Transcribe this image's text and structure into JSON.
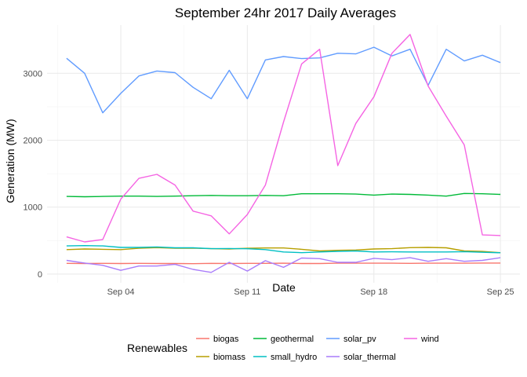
{
  "chart_data": {
    "type": "line",
    "title": "September 24hr 2017 Daily Averages",
    "xlabel": "Date",
    "ylabel": "Generation (MW)",
    "x": [
      "2017-09-01",
      "2017-09-02",
      "2017-09-03",
      "2017-09-04",
      "2017-09-05",
      "2017-09-06",
      "2017-09-07",
      "2017-09-08",
      "2017-09-09",
      "2017-09-10",
      "2017-09-11",
      "2017-09-12",
      "2017-09-13",
      "2017-09-14",
      "2017-09-15",
      "2017-09-16",
      "2017-09-17",
      "2017-09-18",
      "2017-09-19",
      "2017-09-20",
      "2017-09-21",
      "2017-09-22",
      "2017-09-23",
      "2017-09-24",
      "2017-09-25"
    ],
    "x_ticks": [
      {
        "date": "2017-09-04",
        "label": "Sep 04"
      },
      {
        "date": "2017-09-11",
        "label": "Sep 11"
      },
      {
        "date": "2017-09-18",
        "label": "Sep 18"
      },
      {
        "date": "2017-09-25",
        "label": "Sep 25"
      }
    ],
    "y_ticks": [
      0,
      1000,
      2000,
      3000
    ],
    "ylim": [
      -130,
      3720
    ],
    "grid": true,
    "legend": {
      "title": "Renewables",
      "position": "bottom"
    },
    "series": [
      {
        "name": "biogas",
        "color": "#F8766D",
        "values": [
          160,
          158,
          160,
          158,
          160,
          158,
          158,
          155,
          160,
          158,
          160,
          160,
          162,
          158,
          158,
          162,
          162,
          162,
          162,
          160,
          162,
          162,
          162,
          165,
          165
        ]
      },
      {
        "name": "biomass",
        "color": "#B79F00",
        "values": [
          365,
          375,
          370,
          365,
          385,
          395,
          385,
          388,
          380,
          375,
          385,
          390,
          390,
          370,
          345,
          355,
          360,
          375,
          380,
          395,
          398,
          392,
          345,
          338,
          320
        ]
      },
      {
        "name": "geothermal",
        "color": "#00BA38",
        "values": [
          1160,
          1155,
          1160,
          1165,
          1165,
          1160,
          1165,
          1170,
          1175,
          1170,
          1170,
          1175,
          1170,
          1200,
          1200,
          1200,
          1195,
          1180,
          1195,
          1190,
          1180,
          1165,
          1205,
          1200,
          1190
        ]
      },
      {
        "name": "small_hydro",
        "color": "#00BFC4",
        "values": [
          420,
          425,
          420,
          398,
          398,
          405,
          392,
          392,
          380,
          382,
          378,
          365,
          330,
          320,
          330,
          340,
          345,
          330,
          332,
          330,
          330,
          330,
          335,
          325,
          318
        ]
      },
      {
        "name": "solar_pv",
        "color": "#619CFF",
        "values": [
          3225,
          3000,
          2410,
          2700,
          2960,
          3035,
          3010,
          2790,
          2620,
          3045,
          2620,
          3200,
          3250,
          3220,
          3230,
          3300,
          3290,
          3390,
          3260,
          3360,
          2820,
          3360,
          3185,
          3270,
          3160
        ]
      },
      {
        "name": "solar_thermal",
        "color": "#A97CFA",
        "values": [
          205,
          165,
          130,
          55,
          120,
          120,
          145,
          70,
          25,
          175,
          45,
          200,
          100,
          240,
          230,
          175,
          175,
          235,
          215,
          245,
          190,
          230,
          190,
          205,
          245
        ]
      },
      {
        "name": "wind",
        "color": "#F564E3",
        "values": [
          555,
          480,
          515,
          1120,
          1430,
          1490,
          1330,
          940,
          870,
          600,
          890,
          1330,
          2270,
          3140,
          3360,
          1620,
          2250,
          2650,
          3300,
          3580,
          2810,
          2360,
          1930,
          585,
          575
        ]
      }
    ]
  }
}
